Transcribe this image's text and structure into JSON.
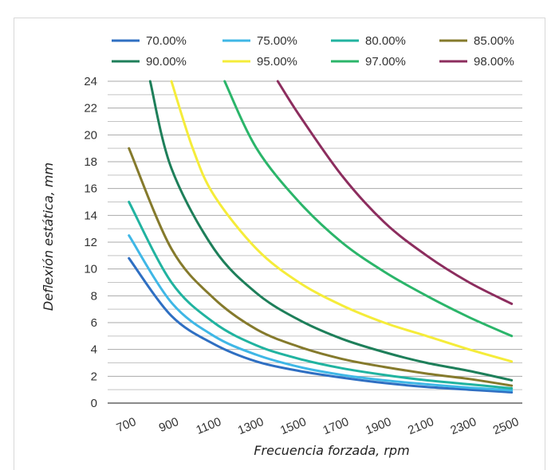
{
  "chart_data": {
    "type": "line",
    "title": "",
    "xlabel": "Frecuencia forzada, rpm",
    "ylabel": "Deflexión estática, mm",
    "x_ticks": [
      "700",
      "900",
      "1100",
      "1300",
      "1500",
      "1700",
      "1900",
      "2100",
      "2300",
      "2500"
    ],
    "y_ticks": [
      "0",
      "2",
      "4",
      "6",
      "8",
      "10",
      "12",
      "14",
      "16",
      "18",
      "20",
      "22",
      "24"
    ],
    "xlim": [
      600,
      2550
    ],
    "ylim": [
      0,
      24
    ],
    "grid": "horizontal",
    "legend": "top",
    "series": [
      {
        "name": "70.00%",
        "color": "#2f6fc2",
        "x": [
          700,
          900,
          1100,
          1300,
          1500,
          1700,
          1900,
          2100,
          2300,
          2500
        ],
        "y": [
          10.8,
          6.5,
          4.4,
          3.1,
          2.4,
          1.9,
          1.5,
          1.2,
          1.0,
          0.8
        ]
      },
      {
        "name": "75.00%",
        "color": "#3fb7e6",
        "x": [
          700,
          900,
          1100,
          1300,
          1500,
          1700,
          1900,
          2100,
          2300,
          2500
        ],
        "y": [
          12.5,
          7.5,
          5.0,
          3.6,
          2.7,
          2.1,
          1.7,
          1.4,
          1.15,
          0.95
        ]
      },
      {
        "name": "80.00%",
        "color": "#21b3a0",
        "x": [
          700,
          900,
          1100,
          1300,
          1500,
          1700,
          1900,
          2100,
          2300,
          2500
        ],
        "y": [
          15.0,
          9.0,
          6.0,
          4.3,
          3.3,
          2.6,
          2.1,
          1.7,
          1.4,
          1.1
        ]
      },
      {
        "name": "85.00%",
        "color": "#857a2c",
        "x": [
          700,
          900,
          1100,
          1300,
          1500,
          1700,
          1900,
          2100,
          2300,
          2500
        ],
        "y": [
          19.0,
          11.5,
          7.8,
          5.5,
          4.2,
          3.3,
          2.7,
          2.2,
          1.8,
          1.3
        ]
      },
      {
        "name": "90.00%",
        "color": "#1e7f5a",
        "x": [
          800,
          900,
          1100,
          1300,
          1500,
          1700,
          1900,
          2100,
          2300,
          2500
        ],
        "y": [
          24.0,
          17.5,
          11.5,
          8.2,
          6.2,
          4.8,
          3.8,
          3.0,
          2.4,
          1.7
        ]
      },
      {
        "name": "95.00%",
        "color": "#f5ec3a",
        "x": [
          900,
          1000,
          1100,
          1300,
          1500,
          1700,
          1900,
          2100,
          2300,
          2500
        ],
        "y": [
          24.0,
          19.0,
          15.5,
          11.5,
          9.0,
          7.3,
          6.0,
          5.0,
          4.0,
          3.1
        ]
      },
      {
        "name": "97.00%",
        "color": "#2bb56a",
        "x": [
          1150,
          1300,
          1500,
          1700,
          1900,
          2100,
          2300,
          2500
        ],
        "y": [
          24.0,
          19.0,
          15.0,
          12.0,
          9.8,
          8.0,
          6.4,
          5.0
        ]
      },
      {
        "name": "98.00%",
        "color": "#8c2d5e",
        "x": [
          1400,
          1500,
          1700,
          1900,
          2100,
          2300,
          2500
        ],
        "y": [
          24.0,
          21.5,
          17.0,
          13.5,
          11.0,
          9.0,
          7.4
        ]
      }
    ]
  }
}
